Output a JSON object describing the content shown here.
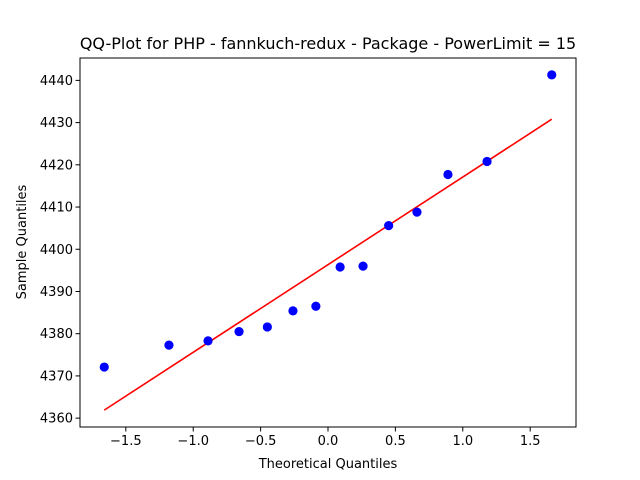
{
  "chart_data": {
    "type": "scatter",
    "title": "QQ-Plot for PHP - fannkuch-redux - Package - PowerLimit = 15",
    "xlabel": "Theoretical Quantiles",
    "ylabel": "Sample Quantiles",
    "xlim": [
      -1.84,
      1.84
    ],
    "ylim": [
      4357.9,
      4445.3
    ],
    "grid": false,
    "xticks": [
      -1.5,
      -1.0,
      -0.5,
      0.0,
      0.5,
      1.0,
      1.5
    ],
    "xtick_labels": [
      "−1.5",
      "−1.0",
      "−0.5",
      "0.0",
      "0.5",
      "1.0",
      "1.5"
    ],
    "yticks": [
      4360,
      4370,
      4380,
      4390,
      4400,
      4410,
      4420,
      4430,
      4440
    ],
    "ytick_labels": [
      "4360",
      "4370",
      "4380",
      "4390",
      "4400",
      "4410",
      "4420",
      "4430",
      "4440"
    ],
    "series": [
      {
        "kind": "points",
        "color": "#0000ff",
        "x": [
          -1.66,
          -1.18,
          -0.89,
          -0.66,
          -0.45,
          -0.26,
          -0.09,
          0.09,
          0.26,
          0.45,
          0.66,
          0.89,
          1.18,
          1.66
        ],
        "y": [
          4372.1,
          4377.3,
          4378.3,
          4380.5,
          4381.6,
          4385.4,
          4386.5,
          4395.8,
          4396.0,
          4405.6,
          4408.8,
          4417.7,
          4420.8,
          4441.3
        ]
      },
      {
        "kind": "line",
        "color": "#ff0000",
        "x": [
          -1.66,
          1.66
        ],
        "y": [
          4361.9,
          4430.8
        ]
      }
    ]
  }
}
